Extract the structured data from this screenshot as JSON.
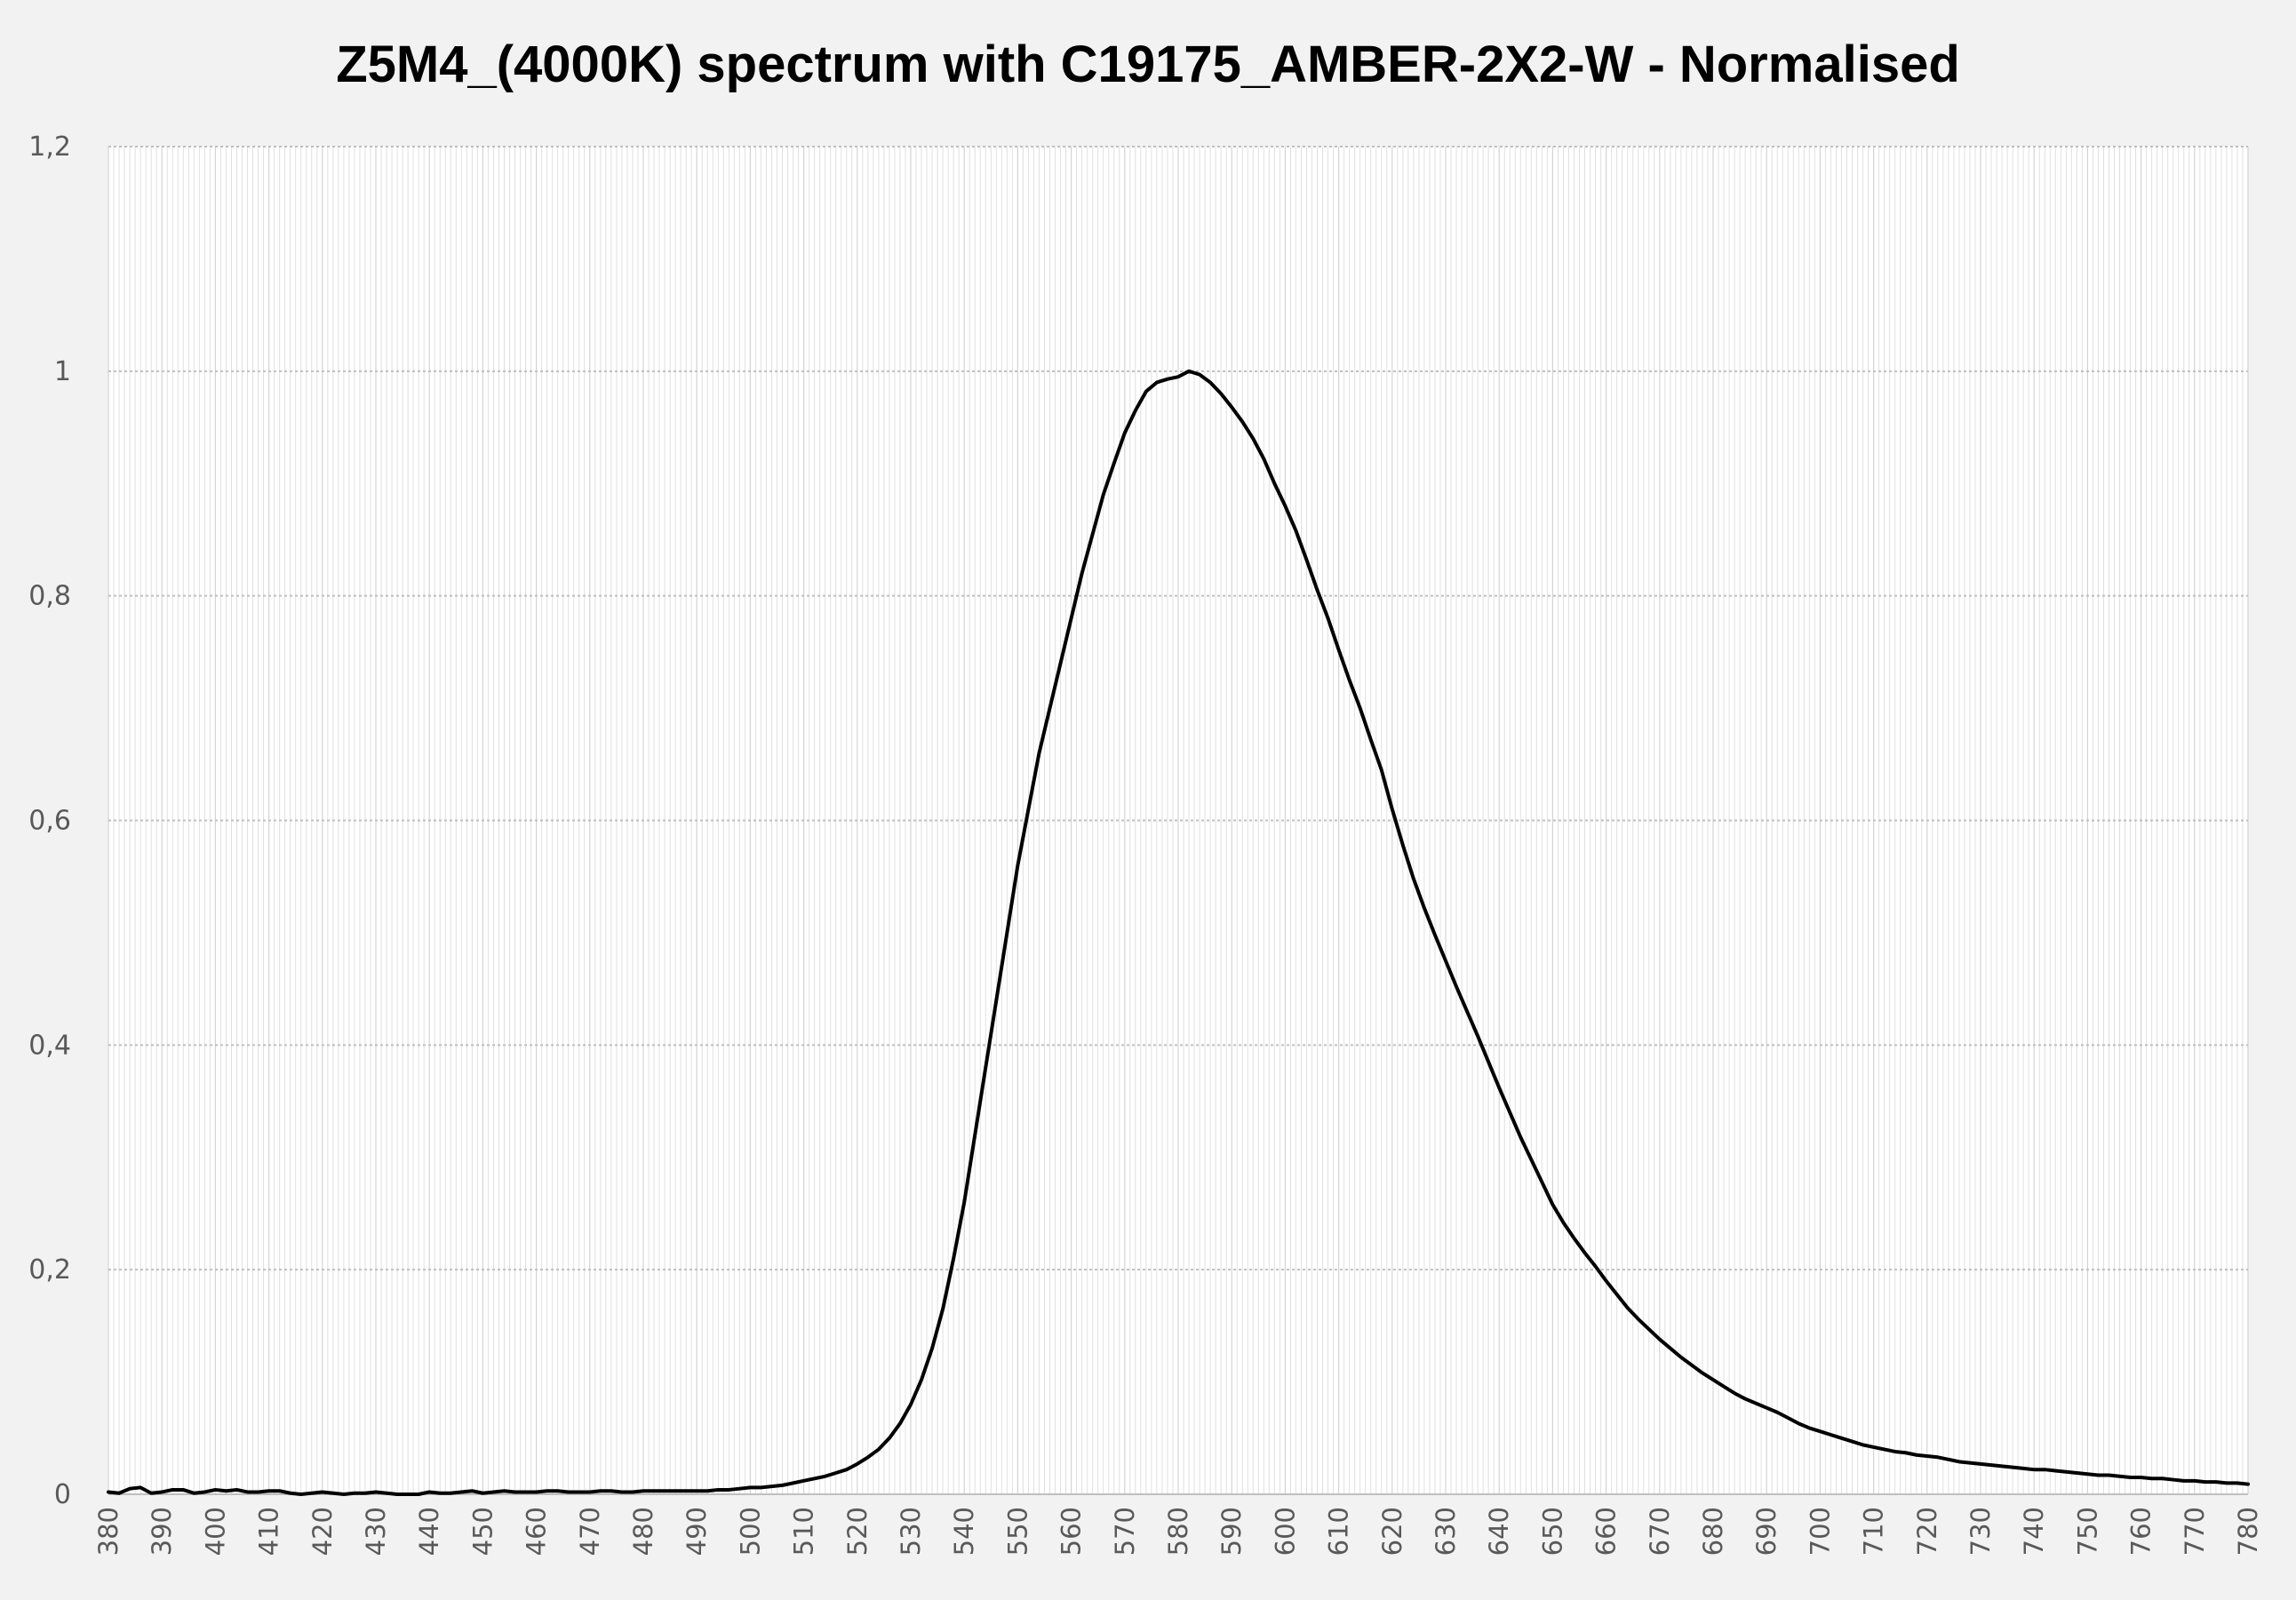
{
  "chart_data": {
    "type": "line",
    "title": "Z5M4_(4000K) spectrum with C19175_AMBER-2X2-W - Normalised",
    "xlabel": "",
    "ylabel": "",
    "xlim": [
      380,
      780
    ],
    "ylim": [
      0,
      1.2
    ],
    "x_ticks": [
      "380",
      "390",
      "400",
      "410",
      "420",
      "430",
      "440",
      "450",
      "460",
      "470",
      "480",
      "490",
      "500",
      "510",
      "520",
      "530",
      "540",
      "550",
      "560",
      "570",
      "580",
      "590",
      "600",
      "610",
      "620",
      "630",
      "640",
      "650",
      "660",
      "670",
      "680",
      "690",
      "700",
      "710",
      "720",
      "730",
      "740",
      "750",
      "760",
      "770",
      "780"
    ],
    "y_ticks": [
      "0",
      "0,2",
      "0,4",
      "0,6",
      "0,8",
      "1",
      "1,2"
    ],
    "grid": true,
    "legend": "none",
    "colors": {
      "line": "#000000",
      "plot_bg": "#ffffff",
      "page_bg": "#f2f2f2",
      "grid_major": "#bfbfbf",
      "grid_minor": "#e0e0e0"
    },
    "series": [
      {
        "x": [
          380,
          382,
          384,
          386,
          388,
          390,
          392,
          394,
          396,
          398,
          400,
          402,
          404,
          406,
          408,
          410,
          412,
          414,
          416,
          418,
          420,
          422,
          424,
          426,
          428,
          430,
          432,
          434,
          436,
          438,
          440,
          442,
          444,
          446,
          448,
          450,
          452,
          454,
          456,
          458,
          460,
          462,
          464,
          466,
          468,
          470,
          472,
          474,
          476,
          478,
          480,
          482,
          484,
          486,
          488,
          490,
          492,
          494,
          496,
          498,
          500,
          502,
          504,
          506,
          508,
          510,
          512,
          514,
          516,
          518,
          520,
          522,
          524,
          526,
          528,
          530,
          532,
          534,
          536,
          538,
          540,
          542,
          544,
          546,
          548,
          550,
          552,
          554,
          556,
          558,
          560,
          562,
          564,
          566,
          568,
          570,
          572,
          574,
          576,
          578,
          580,
          582,
          584,
          586,
          588,
          590,
          592,
          594,
          596,
          598,
          600,
          602,
          604,
          606,
          608,
          610,
          612,
          614,
          616,
          618,
          620,
          622,
          624,
          626,
          628,
          630,
          632,
          634,
          636,
          638,
          640,
          642,
          644,
          646,
          648,
          650,
          652,
          654,
          656,
          658,
          660,
          662,
          664,
          666,
          668,
          670,
          672,
          674,
          676,
          678,
          680,
          682,
          684,
          686,
          688,
          690,
          692,
          694,
          696,
          698,
          700,
          702,
          704,
          706,
          708,
          710,
          712,
          714,
          716,
          718,
          720,
          722,
          724,
          726,
          728,
          730,
          732,
          734,
          736,
          738,
          740,
          742,
          744,
          746,
          748,
          750,
          752,
          754,
          756,
          758,
          760,
          762,
          764,
          766,
          768,
          770,
          772,
          774,
          776,
          778,
          780
        ],
        "values": [
          0.002,
          0.001,
          0.005,
          0.006,
          0.001,
          0.002,
          0.004,
          0.004,
          0.001,
          0.002,
          0.004,
          0.003,
          0.004,
          0.002,
          0.002,
          0.003,
          0.003,
          0.001,
          0.0,
          0.001,
          0.002,
          0.001,
          0.0,
          0.001,
          0.001,
          0.002,
          0.001,
          0.0,
          0.0,
          0.0,
          0.002,
          0.001,
          0.001,
          0.002,
          0.003,
          0.001,
          0.002,
          0.003,
          0.002,
          0.002,
          0.002,
          0.003,
          0.003,
          0.002,
          0.002,
          0.002,
          0.003,
          0.003,
          0.002,
          0.002,
          0.003,
          0.003,
          0.003,
          0.003,
          0.003,
          0.003,
          0.003,
          0.004,
          0.004,
          0.005,
          0.006,
          0.006,
          0.007,
          0.008,
          0.01,
          0.012,
          0.014,
          0.016,
          0.019,
          0.022,
          0.027,
          0.033,
          0.04,
          0.05,
          0.063,
          0.08,
          0.102,
          0.13,
          0.165,
          0.21,
          0.26,
          0.32,
          0.38,
          0.44,
          0.5,
          0.56,
          0.61,
          0.66,
          0.7,
          0.74,
          0.78,
          0.82,
          0.855,
          0.89,
          0.918,
          0.945,
          0.965,
          0.982,
          0.99,
          0.993,
          0.995,
          1.0,
          0.997,
          0.99,
          0.98,
          0.968,
          0.955,
          0.94,
          0.922,
          0.9,
          0.88,
          0.858,
          0.832,
          0.805,
          0.78,
          0.752,
          0.725,
          0.7,
          0.672,
          0.645,
          0.61,
          0.578,
          0.548,
          0.522,
          0.498,
          0.475,
          0.452,
          0.43,
          0.408,
          0.385,
          0.362,
          0.34,
          0.318,
          0.298,
          0.278,
          0.258,
          0.242,
          0.228,
          0.215,
          0.203,
          0.19,
          0.178,
          0.166,
          0.156,
          0.147,
          0.138,
          0.13,
          0.122,
          0.115,
          0.108,
          0.102,
          0.096,
          0.09,
          0.085,
          0.081,
          0.077,
          0.073,
          0.068,
          0.063,
          0.059,
          0.056,
          0.053,
          0.05,
          0.047,
          0.044,
          0.042,
          0.04,
          0.038,
          0.037,
          0.035,
          0.034,
          0.033,
          0.031,
          0.029,
          0.028,
          0.027,
          0.026,
          0.025,
          0.024,
          0.023,
          0.022,
          0.022,
          0.021,
          0.02,
          0.019,
          0.018,
          0.017,
          0.017,
          0.016,
          0.015,
          0.015,
          0.014,
          0.014,
          0.013,
          0.012,
          0.012,
          0.011,
          0.011,
          0.01,
          0.01,
          0.009
        ]
      }
    ]
  }
}
